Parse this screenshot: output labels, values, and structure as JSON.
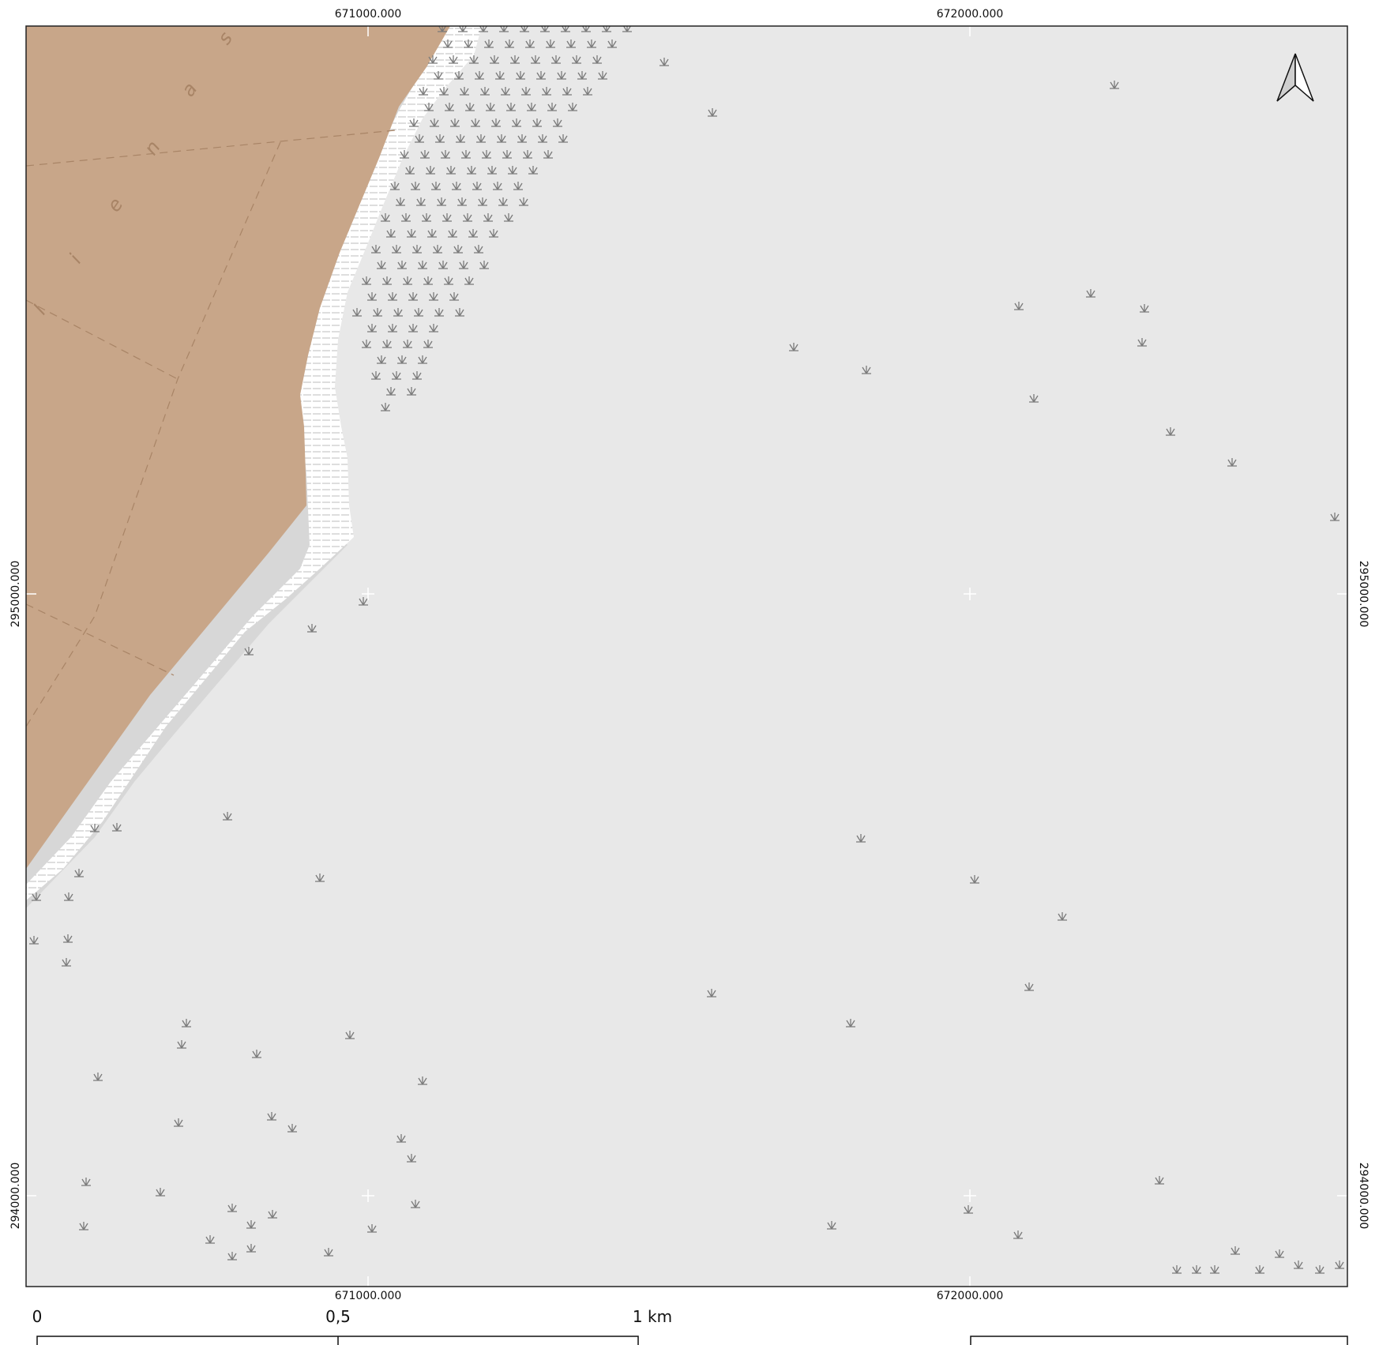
{
  "map": {
    "colors": {
      "background_sea": "#e8e8e8",
      "land": "#c8a689",
      "intertidal": "#ffffff",
      "shore_shadow": "#d7d7d7",
      "symbol": "#7a7a7a",
      "frame": "#222222"
    },
    "land_label_letters": [
      "s",
      "a",
      "n",
      "e",
      "i",
      "l"
    ],
    "icons": {
      "north_arrow": "north-arrow-icon",
      "marsh_symbol": "marsh-tuft-icon"
    }
  },
  "grid": {
    "top_labels": [
      "671000.000",
      "672000.000"
    ],
    "bottom_labels": [
      "671000.000",
      "672000.000"
    ],
    "left_labels": [
      "295000.000",
      "294000.000"
    ],
    "right_labels": [
      "295000.000",
      "294000.000"
    ]
  },
  "scalebar": {
    "labels": [
      "0",
      "0,5",
      "1 km"
    ]
  }
}
